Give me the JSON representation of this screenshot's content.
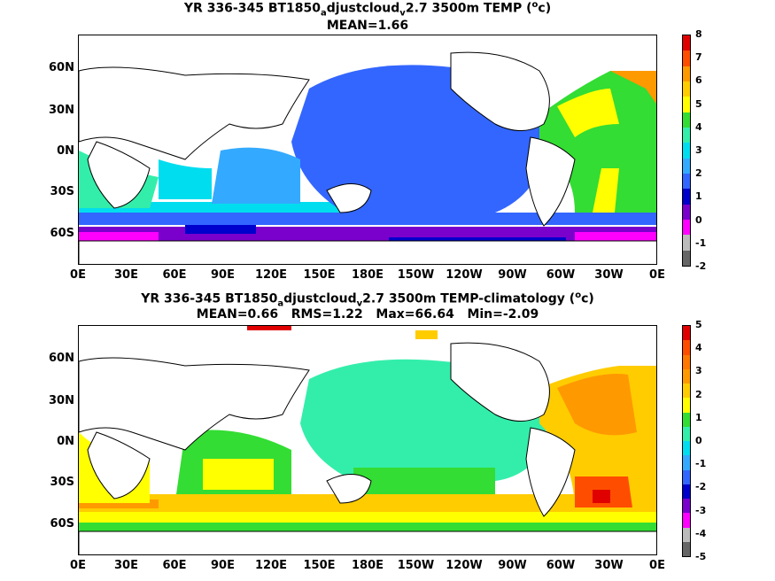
{
  "panels": [
    {
      "title_prefix": "YR 336-345 BT1850",
      "title_sub1": "a",
      "title_mid": "djustcloud",
      "title_sub2": "v",
      "title_after": "2.7 3500m TEMP (",
      "title_sup": "o",
      "title_end": "c)",
      "stats": "MEAN=1.66",
      "colorbar_labels": [
        "8",
        "7",
        "6",
        "5",
        "4",
        "3",
        "2",
        "1",
        "0",
        "-1",
        "-2"
      ],
      "colorbar_colors": [
        "#e00000",
        "#ff4d00",
        "#ff9900",
        "#ffcc00",
        "#ffff00",
        "#33dd33",
        "#33eeaa",
        "#00ddee",
        "#33aaff",
        "#3366ff",
        "#0000cc",
        "#7a00cc",
        "#ff00ff",
        "#bbbbbb",
        "#666666"
      ]
    },
    {
      "title_prefix": "YR 336-345 BT1850",
      "title_sub1": "a",
      "title_mid": "djustcloud",
      "title_sub2": "v",
      "title_after": "2.7 3500m TEMP-climatology (",
      "title_sup": "o",
      "title_end": "c)",
      "stats": "MEAN=0.66   RMS=1.22   Max=66.64   Min=-2.09",
      "colorbar_labels": [
        "5",
        "4",
        "3",
        "2",
        "1",
        "0",
        "-1",
        "-2",
        "-3",
        "-4",
        "-5"
      ],
      "colorbar_colors": [
        "#e00000",
        "#ff4d00",
        "#ff7700",
        "#ff9900",
        "#ffcc00",
        "#ffff00",
        "#33dd33",
        "#33eeaa",
        "#00ddee",
        "#33aaff",
        "#3366ff",
        "#0000cc",
        "#7a00cc",
        "#ff00ff",
        "#bbbbbb",
        "#666666"
      ]
    }
  ],
  "lat_labels": [
    "60N",
    "30N",
    "0N",
    "30S",
    "60S"
  ],
  "lon_labels": [
    "0E",
    "30E",
    "60E",
    "90E",
    "120E",
    "150E",
    "180E",
    "150W",
    "120W",
    "90W",
    "60W",
    "30W",
    "0E"
  ]
}
